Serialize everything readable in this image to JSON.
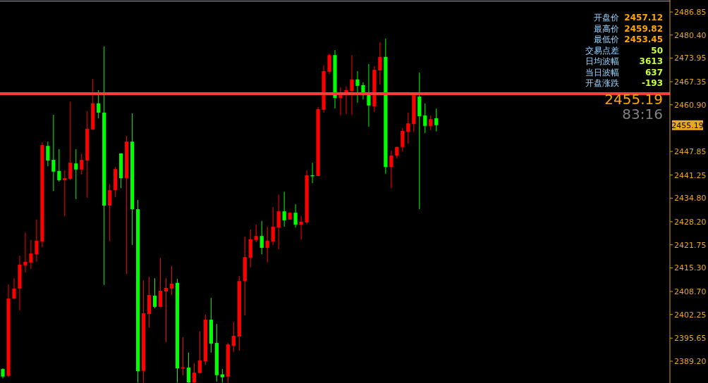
{
  "chart_data": {
    "type": "candlestick",
    "categories": [
      null,
      null,
      null,
      null,
      null,
      null,
      null,
      null,
      null,
      null,
      null,
      null,
      null,
      null,
      null,
      null,
      null,
      null,
      null,
      null,
      null,
      null,
      null,
      null,
      null,
      null,
      null,
      null,
      null,
      null,
      null,
      null,
      null,
      null,
      null,
      null,
      null,
      null,
      null,
      null,
      null,
      null,
      null,
      null,
      null,
      null,
      null,
      null,
      null,
      null,
      null,
      null,
      null,
      null,
      null,
      null,
      null,
      null,
      null,
      null,
      null,
      null,
      null,
      null,
      null,
      null,
      null,
      null,
      null,
      null,
      null,
      null,
      null,
      null,
      null,
      null,
      null,
      null,
      null,
      null,
      null,
      null,
      null,
      null,
      null,
      null,
      null,
      null,
      null,
      null,
      null,
      null,
      null,
      null,
      null,
      null,
      null,
      null,
      null,
      null,
      null,
      null,
      null,
      null,
      null,
      null,
      null,
      null,
      null,
      null,
      null,
      null,
      null,
      null,
      null,
      null,
      null,
      null,
      null
    ],
    "ohlc": [
      [
        2387.0,
        2387.2,
        2384.4,
        2384.9
      ],
      [
        2385.1,
        2410.7,
        2384.7,
        2406.7
      ],
      [
        2406.7,
        2412.4,
        2406.5,
        2409.5
      ],
      [
        2409.5,
        2418.7,
        2403.4,
        2416.2
      ],
      [
        2416.0,
        2425.2,
        2414.0,
        2417.0
      ],
      [
        2416.8,
        2423.1,
        2415.0,
        2419.3
      ],
      [
        2419.1,
        2428.8,
        2417.0,
        2422.9
      ],
      [
        2422.7,
        2450.4,
        2421.1,
        2449.6
      ],
      [
        2449.4,
        2450.6,
        2443.7,
        2445.3
      ],
      [
        2445.5,
        2458.1,
        2436.8,
        2442.2
      ],
      [
        2442.4,
        2448.5,
        2439.4,
        2439.8
      ],
      [
        2439.8,
        2442.6,
        2429.8,
        2440.4
      ],
      [
        2440.2,
        2461.8,
        2439.8,
        2444.7
      ],
      [
        2444.5,
        2448.5,
        2434.5,
        2442.8
      ],
      [
        2442.8,
        2447.3,
        2441.4,
        2445.5
      ],
      [
        2445.3,
        2459.1,
        2434.9,
        2454.2
      ],
      [
        2454.0,
        2468.1,
        2453.8,
        2461.3
      ],
      [
        2461.3,
        2465.0,
        2457.1,
        2458.7
      ],
      [
        2458.7,
        2477.2,
        2410.5,
        2432.7
      ],
      [
        2432.7,
        2438.8,
        2422.7,
        2437.0
      ],
      [
        2437.0,
        2443.5,
        2435.1,
        2442.9
      ],
      [
        2447.3,
        2447.3,
        2437.6,
        2440.4
      ],
      [
        2440.4,
        2452.2,
        2413.6,
        2450.6
      ],
      [
        2450.6,
        2458.5,
        2421.7,
        2431.7
      ],
      [
        2431.7,
        2434.3,
        2383.2,
        2386.4
      ],
      [
        2386.5,
        2411.8,
        2383.2,
        2402.6
      ],
      [
        2402.4,
        2412.8,
        2398.6,
        2407.7
      ],
      [
        2407.5,
        2412.4,
        2404.0,
        2404.4
      ],
      [
        2404.4,
        2418.1,
        2404.2,
        2408.9
      ],
      [
        2408.7,
        2412.4,
        2394.5,
        2409.7
      ],
      [
        2409.5,
        2415.8,
        2407.7,
        2410.9
      ],
      [
        2411.1,
        2412.2,
        2383.2,
        2387.2
      ],
      [
        2387.4,
        2395.9,
        2385.3,
        2387.5
      ],
      [
        2387.4,
        2391.6,
        2383.2,
        2383.3
      ],
      [
        2383.3,
        2388.6,
        2383.2,
        2386.0
      ],
      [
        2385.9,
        2397.5,
        2385.7,
        2389.4
      ],
      [
        2389.2,
        2402.2,
        2388.2,
        2400.8
      ],
      [
        2400.8,
        2406.9,
        2391.6,
        2394.1
      ],
      [
        2394.3,
        2399.6,
        2383.5,
        2385.3
      ],
      [
        2385.5,
        2387.0,
        2383.2,
        2384.7
      ],
      [
        2384.9,
        2394.3,
        2383.2,
        2393.9
      ],
      [
        2393.5,
        2400.2,
        2391.8,
        2396.3
      ],
      [
        2396.1,
        2413.0,
        2392.2,
        2411.6
      ],
      [
        2411.6,
        2424.0,
        2402.0,
        2418.3
      ],
      [
        2418.1,
        2426.0,
        2415.4,
        2423.3
      ],
      [
        2423.1,
        2427.4,
        2422.5,
        2424.2
      ],
      [
        2424.2,
        2428.4,
        2419.1,
        2420.9
      ],
      [
        2420.9,
        2426.8,
        2416.8,
        2422.9
      ],
      [
        2422.7,
        2432.3,
        2421.7,
        2426.8
      ],
      [
        2426.6,
        2435.7,
        2420.5,
        2431.1
      ],
      [
        2431.1,
        2436.6,
        2426.8,
        2428.6
      ],
      [
        2428.8,
        2430.9,
        2428.8,
        2430.7
      ],
      [
        2430.7,
        2433.1,
        2426.6,
        2427.4
      ],
      [
        2427.4,
        2429.8,
        2423.1,
        2428.2
      ],
      [
        2428.0,
        2442.6,
        2427.6,
        2441.2
      ],
      [
        2441.2,
        2444.7,
        2439.0,
        2441.1
      ],
      [
        2441.0,
        2460.3,
        2441.0,
        2459.7
      ],
      [
        2459.5,
        2471.9,
        2458.7,
        2470.3
      ],
      [
        2470.1,
        2475.2,
        2469.5,
        2474.8
      ],
      [
        2474.8,
        2476.2,
        2459.9,
        2462.8
      ],
      [
        2462.8,
        2465.8,
        2457.9,
        2463.8
      ],
      [
        2463.6,
        2466.0,
        2458.3,
        2465.0
      ],
      [
        2464.8,
        2474.8,
        2458.1,
        2468.0
      ],
      [
        2468.0,
        2470.3,
        2461.5,
        2466.2
      ],
      [
        2466.4,
        2467.2,
        2462.4,
        2463.6
      ],
      [
        2463.6,
        2472.3,
        2454.8,
        2460.7
      ],
      [
        2460.5,
        2471.7,
        2458.9,
        2470.7
      ],
      [
        2470.5,
        2478.4,
        2466.6,
        2474.3
      ],
      [
        2474.3,
        2479.4,
        2441.6,
        2443.5
      ],
      [
        2443.5,
        2448.1,
        2437.6,
        2446.7
      ],
      [
        2446.7,
        2449.2,
        2445.9,
        2449.1
      ],
      [
        2449.1,
        2454.4,
        2447.9,
        2453.6
      ],
      [
        2453.4,
        2458.7,
        2450.0,
        2455.7
      ],
      [
        2455.5,
        2464.0,
        2453.4,
        2463.8
      ],
      [
        2463.2,
        2469.9,
        2431.7,
        2457.7
      ],
      [
        2457.9,
        2461.3,
        2453.0,
        2455.0
      ],
      [
        2455.0,
        2457.9,
        2453.8,
        2456.9
      ],
      [
        2457.12,
        2459.82,
        2453.45,
        2455.19
      ],
      null,
      null,
      null,
      null,
      null,
      null,
      null,
      null,
      null,
      null,
      null,
      null,
      null,
      null,
      null,
      null,
      null,
      null,
      null,
      null,
      null,
      null,
      null,
      null,
      null,
      null,
      null,
      null,
      null,
      null,
      null,
      null,
      null,
      null,
      null,
      null,
      null,
      null,
      null,
      null,
      null
    ],
    "colors": [
      "#00ff00",
      "#ff0000",
      "#ff0000",
      "#ff0000",
      "#ff0000",
      "#ff0000",
      "#ff0000",
      "#ff0000",
      "#00ff00",
      "#00ff00",
      "#00ff00",
      "#ff0000",
      "#ff0000",
      "#00ff00",
      "#ff0000",
      "#ff0000",
      "#ff0000",
      "#00ff00",
      "#00ff00",
      "#ff0000",
      "#ff0000",
      "#00ff00",
      "#ff0000",
      "#00ff00",
      "#00ff00",
      "#ff0000",
      "#ff0000",
      "#00ff00",
      "#ff0000",
      "#ff0000",
      "#ff0000",
      "#00ff00",
      "#ff0000",
      "#00ff00",
      "#ff0000",
      "#ff0000",
      "#ff0000",
      "#00ff00",
      "#00ff00",
      "#00ff00",
      "#ff0000",
      "#ff0000",
      "#ff0000",
      "#ff0000",
      "#ff0000",
      "#ff0000",
      "#00ff00",
      "#ff0000",
      "#ff0000",
      "#ff0000",
      "#00ff00",
      "#ff0000",
      "#00ff00",
      "#ff0000",
      "#ff0000",
      "#00ff00",
      "#ff0000",
      "#ff0000",
      "#ff0000",
      "#00ff00",
      "#ff0000",
      "#ff0000",
      "#ff0000",
      "#00ff00",
      "#00ff00",
      "#00ff00",
      "#ff0000",
      "#ff0000",
      "#00ff00",
      "#ff0000",
      "#ff0000",
      "#ff0000",
      "#ff0000",
      "#ff0000",
      "#00ff00",
      "#00ff00",
      "#ff0000",
      "#00ff00",
      null,
      null,
      null,
      null,
      null,
      null,
      null,
      null,
      null,
      null,
      null,
      null,
      null,
      null,
      null,
      null,
      null,
      null,
      null,
      null,
      null,
      null,
      null,
      null,
      null,
      null,
      null,
      null,
      null,
      null,
      null,
      null,
      null,
      null,
      null,
      null,
      null,
      null,
      null,
      null,
      null
    ],
    "ylim": [
      2383.1,
      2490.2
    ],
    "yticks": [
      {
        "value": 2389.2,
        "label": "2389.20"
      },
      2395.65,
      2402.25,
      {
        "value": 2408.7,
        "label": "2408.70"
      },
      {
        "value": 2415.3,
        "label": "2415.30"
      },
      2421.75,
      {
        "value": 2428.2,
        "label": "2428.20"
      },
      {
        "value": 2434.8,
        "label": "2434.80"
      },
      2441.25,
      2447.85,
      {
        "value": 2460.9,
        "label": "2460.90"
      },
      2467.35,
      2473.95,
      {
        "value": 2480.4,
        "label": "2480.40"
      },
      2486.85
    ],
    "ref_lines": [
      {
        "axis": "y",
        "value": 2464.0,
        "color": "#ff3c3c"
      }
    ],
    "annotations": [
      "开盘价",
      "2457.12",
      "最高价",
      "2459.82",
      "最低价",
      "2453.45",
      "交易点差",
      "50",
      "日均波幅",
      "3613",
      "当日波幅",
      "637",
      "开盘涨跌",
      "-193",
      "2455.19",
      "83:16",
      {
        "text": "2455.19",
        "y": 2455.19
      }
    ]
  }
}
